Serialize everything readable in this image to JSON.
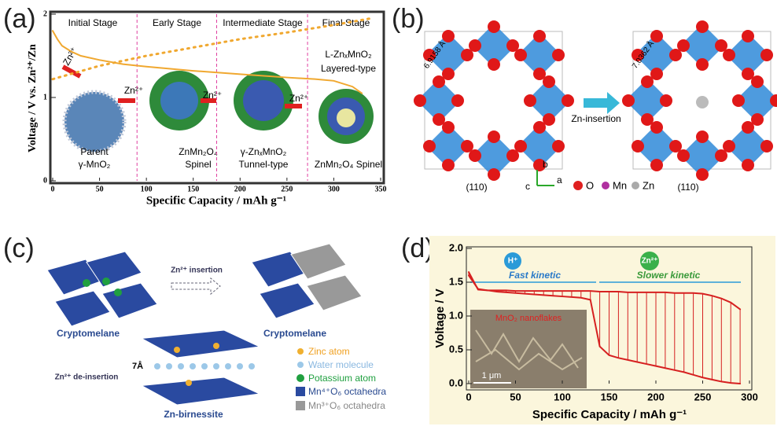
{
  "panel_labels": [
    "(a)",
    "(b)",
    "(c)",
    "(d)"
  ],
  "chart_data": [
    {
      "type": "line",
      "x_label": "Specific Capacity / mAh g⁻¹",
      "y_label": "Voltage / V vs. Zn²⁺/Zn",
      "xlim": [
        0,
        350
      ],
      "xticks": [
        0,
        50,
        100,
        150,
        200,
        250,
        300,
        350
      ],
      "ylim": [
        0,
        2
      ],
      "yticks": [
        0,
        1,
        2
      ],
      "stages": [
        "Initial Stage",
        "Early Stage",
        "Intermediate Stage",
        "Final Stage"
      ],
      "stage_boundaries": [
        90,
        175,
        272
      ],
      "series": [
        {
          "color": "#f0a830",
          "style": "solid",
          "x": [
            0,
            5,
            10,
            20,
            30,
            50,
            75,
            100,
            150,
            200,
            250,
            280,
            300,
            320,
            330
          ],
          "values": [
            1.8,
            1.7,
            1.62,
            1.55,
            1.5,
            1.45,
            1.4,
            1.37,
            1.32,
            1.28,
            1.24,
            1.22,
            1.2,
            1.13,
            1.05
          ]
        },
        {
          "color": "#f0a830",
          "style": "dotted",
          "x": [
            0,
            50,
            100,
            150,
            200,
            250,
            300,
            340
          ],
          "values": [
            1.22,
            1.38,
            1.5,
            1.6,
            1.7,
            1.78,
            1.87,
            1.95
          ]
        }
      ],
      "annotations": [
        "Zn²⁺",
        "Zn²⁺",
        "Zn²⁺",
        "Zn²⁺",
        "Parent",
        "γ-MnO₂",
        "ZnMn₂O₄",
        "Spinel",
        "γ-ZnₓMnO₂",
        "Tunnel-type",
        "ZnMn₂O₄ Spinel",
        "L-ZnₓMnO₂",
        "Layered-type"
      ]
    },
    {
      "type": "line",
      "x_label": "Specific Capacity / mAh g⁻¹",
      "y_label": "Voltage / V",
      "xlim": [
        0,
        300
      ],
      "xticks": [
        0,
        50,
        100,
        150,
        200,
        250,
        300
      ],
      "ylim": [
        0,
        2
      ],
      "yticks": [
        {
          "value": 0,
          "label": "0.0"
        },
        {
          "value": 0.5,
          "label": "0.5"
        },
        {
          "value": 1,
          "label": "1.0"
        },
        {
          "value": 1.5,
          "label": "1.5"
        },
        {
          "value": 2,
          "label": "2.0"
        }
      ],
      "x": [
        0,
        10,
        20,
        30,
        40,
        50,
        60,
        70,
        80,
        90,
        100,
        110,
        120,
        130,
        140,
        150,
        160,
        170,
        180,
        190,
        200,
        210,
        220,
        230,
        240,
        250,
        260,
        270,
        280,
        290
      ],
      "series": [
        {
          "color": "#d62020",
          "values": [
            1.6,
            1.4,
            1.38,
            1.36,
            1.35,
            1.34,
            1.33,
            1.32,
            1.31,
            1.3,
            1.29,
            1.28,
            1.27,
            1.24,
            0.55,
            0.42,
            0.38,
            0.35,
            0.32,
            0.29,
            0.26,
            0.23,
            0.2,
            0.17,
            0.13,
            0.09,
            0.06,
            0.03,
            0.01,
            0.0
          ]
        },
        {
          "color": "#d62020",
          "values": [
            1.65,
            1.39,
            1.38,
            1.38,
            1.38,
            1.37,
            1.37,
            1.37,
            1.37,
            1.37,
            1.37,
            1.37,
            1.37,
            1.37,
            1.36,
            1.36,
            1.36,
            1.35,
            1.35,
            1.35,
            1.35,
            1.35,
            1.34,
            1.34,
            1.34,
            1.33,
            1.3,
            1.26,
            1.2,
            1.1
          ]
        }
      ],
      "annotations": [
        "H⁺",
        "Fast kinetic",
        "Zn²⁺",
        "Slower kinetic",
        "MnO₂ nanoflakes",
        "1 μm"
      ]
    }
  ],
  "diagram_b": {
    "distances": [
      "6.9158 Å",
      "7.0362 Å"
    ],
    "arrow_label": "Zn-insertion",
    "planes": [
      "(110)",
      "(110)"
    ],
    "axes": [
      "b",
      "c",
      "a"
    ],
    "legend": [
      "O",
      "Mn",
      "Zn"
    ]
  },
  "diagram_c": {
    "arrow_top": "Zn²⁺ insertion",
    "arrow_left": "Zn²⁺ de-insertion",
    "structures": [
      "Cryptomelane",
      "Cryptomelane",
      "Zn-birnessite"
    ],
    "spacing": "7Å",
    "legend": [
      "Zinc atom",
      "Water molecule",
      "Potassium atom",
      "Mn⁴⁺O₆ octahedra",
      "Mn³⁺O₆ octahedra"
    ]
  }
}
